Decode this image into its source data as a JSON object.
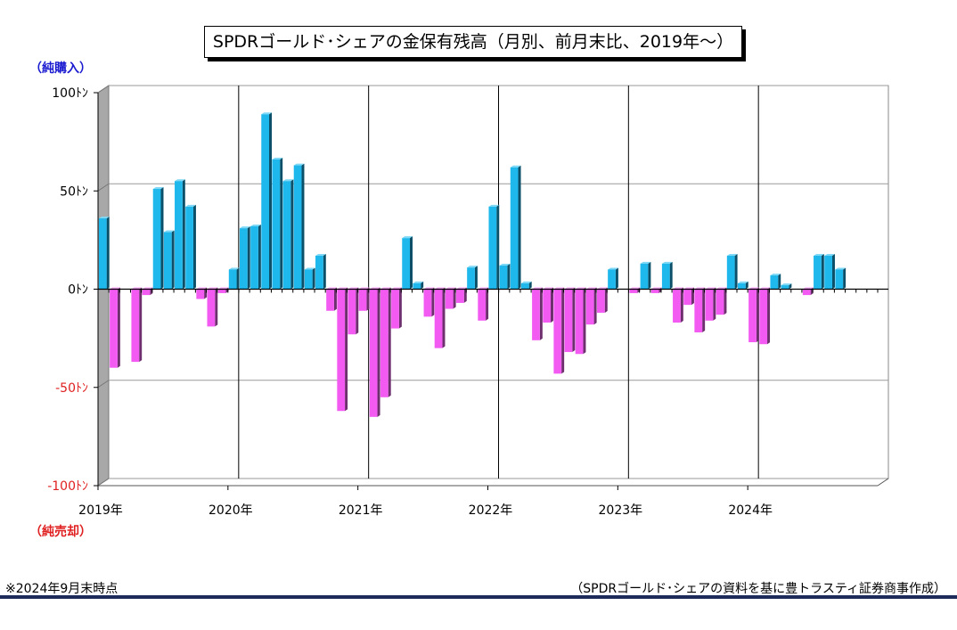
{
  "title": "SPDRゴールド･シェアの金保有残高（月別、前月末比、2019年～）",
  "y_top_label": "（純購入）",
  "y_bottom_label": "（純売却）",
  "footnote": "※2024年9月末時点",
  "source": "（SPDRゴールド･シェアの資料を基に豊トラスティ証券商事作成）",
  "colors": {
    "positive": "#1eb8ec",
    "positive_dark": "#0b4f68",
    "negative": "#f25af2",
    "negative_dark": "#6e2f6e",
    "tick_positive": "#000000",
    "tick_negative": "#e02020",
    "rule": "#1c2b5a"
  },
  "chart_data": {
    "type": "bar",
    "title": "SPDRゴールド･シェアの金保有残高（月別、前月末比、2019年～）",
    "xlabel": "",
    "ylabel": "",
    "ylim": [
      -100,
      100
    ],
    "yticks": [
      100,
      50,
      0,
      -50,
      -100
    ],
    "ytick_labels": [
      "100ﾄﾝ",
      "50ﾄﾝ",
      "0ﾄﾝ",
      "-50ﾄﾝ",
      "-100ﾄﾝ"
    ],
    "year_labels": [
      "2019年",
      "2020年",
      "2021年",
      "2022年",
      "2023年",
      "2024年"
    ],
    "grid": true,
    "months": [
      "2019-01",
      "2019-02",
      "2019-03",
      "2019-04",
      "2019-05",
      "2019-06",
      "2019-07",
      "2019-08",
      "2019-09",
      "2019-10",
      "2019-11",
      "2019-12",
      "2020-01",
      "2020-02",
      "2020-03",
      "2020-04",
      "2020-05",
      "2020-06",
      "2020-07",
      "2020-08",
      "2020-09",
      "2020-10",
      "2020-11",
      "2020-12",
      "2021-01",
      "2021-02",
      "2021-03",
      "2021-04",
      "2021-05",
      "2021-06",
      "2021-07",
      "2021-08",
      "2021-09",
      "2021-10",
      "2021-11",
      "2021-12",
      "2022-01",
      "2022-02",
      "2022-03",
      "2022-04",
      "2022-05",
      "2022-06",
      "2022-07",
      "2022-08",
      "2022-09",
      "2022-10",
      "2022-11",
      "2022-12",
      "2023-01",
      "2023-02",
      "2023-03",
      "2023-04",
      "2023-05",
      "2023-06",
      "2023-07",
      "2023-08",
      "2023-09",
      "2023-10",
      "2023-11",
      "2023-12",
      "2024-01",
      "2024-02",
      "2024-03",
      "2024-04",
      "2024-05",
      "2024-06",
      "2024-07",
      "2024-08",
      "2024-09"
    ],
    "values": [
      36,
      -40,
      0,
      -37,
      -3,
      51,
      29,
      55,
      42,
      -5,
      -19,
      -2,
      10,
      31,
      32,
      89,
      66,
      55,
      63,
      10,
      17,
      -11,
      -62,
      -23,
      -11,
      -65,
      -55,
      -20,
      26,
      3,
      -14,
      -30,
      -10,
      -7,
      11,
      -16,
      42,
      12,
      62,
      3,
      -26,
      -17,
      -43,
      -32,
      -33,
      -18,
      -12,
      10,
      0,
      -2,
      13,
      -2,
      13,
      -17,
      -8,
      -22,
      -16,
      -13,
      17,
      3,
      -27,
      -28,
      7,
      2,
      0,
      -3,
      17,
      17,
      10
    ]
  }
}
